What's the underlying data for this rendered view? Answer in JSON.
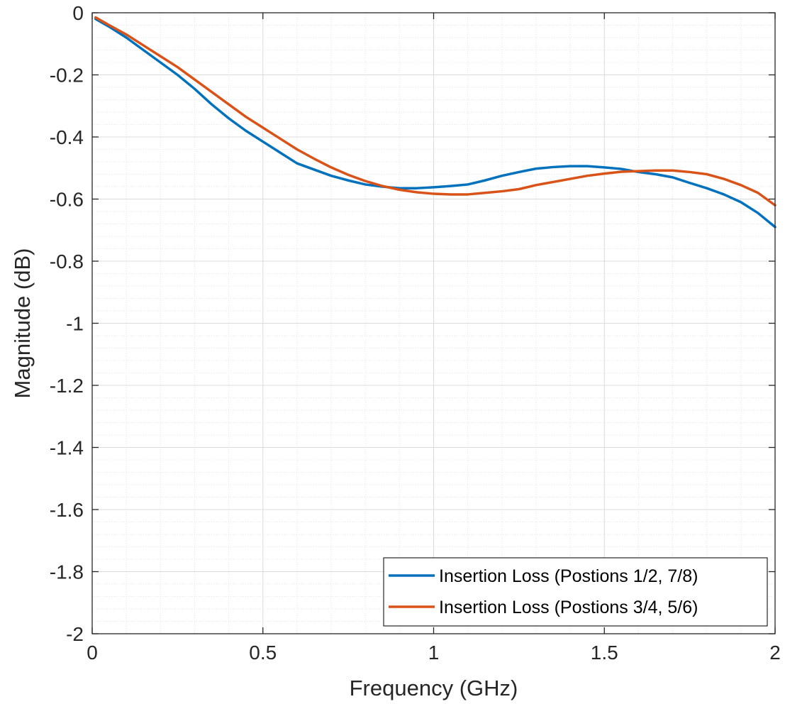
{
  "chart_data": {
    "type": "line",
    "title": "",
    "xlabel": "Frequency (GHz)",
    "ylabel": "Magnitude (dB)",
    "xlim": [
      0,
      2
    ],
    "ylim": [
      -2,
      0
    ],
    "xticks": [
      0,
      0.5,
      1,
      1.5,
      2
    ],
    "xtick_labels": [
      "0",
      "0.5",
      "1",
      "1.5",
      "2"
    ],
    "yticks": [
      0,
      -0.2,
      -0.4,
      -0.6,
      -0.8,
      -1,
      -1.2,
      -1.4,
      -1.6,
      -1.8,
      -2
    ],
    "ytick_labels": [
      "0",
      "-0.2",
      "-0.4",
      "-0.6",
      "-0.8",
      "-1",
      "-1.2",
      "-1.4",
      "-1.6",
      "-1.8",
      "-2"
    ],
    "grid": true,
    "minor_grid": true,
    "legend_position": "bottom-right",
    "series": [
      {
        "name": "Insertion Loss (Postions 1/2, 7/8)",
        "color": "#0072BD",
        "x": [
          0.01,
          0.05,
          0.1,
          0.15,
          0.2,
          0.25,
          0.3,
          0.35,
          0.4,
          0.45,
          0.5,
          0.55,
          0.6,
          0.65,
          0.7,
          0.75,
          0.8,
          0.85,
          0.9,
          0.95,
          1.0,
          1.05,
          1.1,
          1.15,
          1.2,
          1.25,
          1.3,
          1.35,
          1.4,
          1.45,
          1.5,
          1.55,
          1.6,
          1.65,
          1.7,
          1.75,
          1.8,
          1.85,
          1.9,
          1.95,
          2.0
        ],
        "y": [
          -0.02,
          -0.045,
          -0.08,
          -0.12,
          -0.16,
          -0.2,
          -0.245,
          -0.295,
          -0.34,
          -0.38,
          -0.415,
          -0.45,
          -0.485,
          -0.505,
          -0.525,
          -0.54,
          -0.553,
          -0.56,
          -0.565,
          -0.565,
          -0.562,
          -0.558,
          -0.553,
          -0.54,
          -0.525,
          -0.513,
          -0.502,
          -0.497,
          -0.494,
          -0.494,
          -0.498,
          -0.503,
          -0.513,
          -0.52,
          -0.53,
          -0.548,
          -0.565,
          -0.585,
          -0.61,
          -0.645,
          -0.69
        ]
      },
      {
        "name": "Insertion Loss (Postions 3/4, 5/6)",
        "color": "#D95319",
        "x": [
          0.01,
          0.05,
          0.1,
          0.15,
          0.2,
          0.25,
          0.3,
          0.35,
          0.4,
          0.45,
          0.5,
          0.55,
          0.6,
          0.65,
          0.7,
          0.75,
          0.8,
          0.85,
          0.9,
          0.95,
          1.0,
          1.05,
          1.1,
          1.15,
          1.2,
          1.25,
          1.3,
          1.35,
          1.4,
          1.45,
          1.5,
          1.55,
          1.6,
          1.65,
          1.7,
          1.75,
          1.8,
          1.85,
          1.9,
          1.95,
          2.0
        ],
        "y": [
          -0.015,
          -0.04,
          -0.07,
          -0.105,
          -0.14,
          -0.175,
          -0.215,
          -0.255,
          -0.295,
          -0.335,
          -0.37,
          -0.405,
          -0.44,
          -0.47,
          -0.498,
          -0.522,
          -0.542,
          -0.558,
          -0.57,
          -0.578,
          -0.583,
          -0.585,
          -0.585,
          -0.58,
          -0.575,
          -0.568,
          -0.555,
          -0.545,
          -0.535,
          -0.525,
          -0.518,
          -0.512,
          -0.51,
          -0.508,
          -0.508,
          -0.513,
          -0.52,
          -0.535,
          -0.555,
          -0.58,
          -0.62
        ]
      }
    ]
  }
}
